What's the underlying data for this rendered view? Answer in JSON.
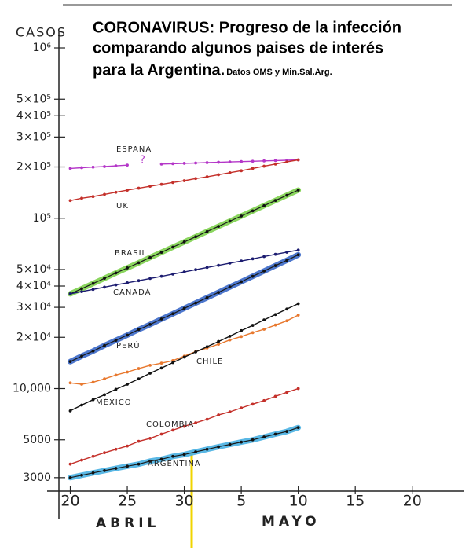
{
  "chart_data": {
    "type": "line",
    "title_lines": [
      "CORONAVIRUS: Progreso de la infección",
      "comparando algunos paises de interés",
      "para la Argentina."
    ],
    "subtitle": "Datos OMS y Min.Sal.Arg.",
    "y_label": "CASOS",
    "x_group_labels": [
      "ABRIL",
      "MAYO"
    ],
    "annotations": [
      "?"
    ],
    "log_y": true,
    "x": [
      0,
      1,
      2,
      3,
      4,
      5,
      6,
      7,
      8,
      9,
      10,
      11,
      12,
      13,
      14,
      15,
      16,
      17,
      18,
      19,
      20
    ],
    "xlim": [
      -1,
      34.5
    ],
    "xticks": [
      {
        "value": 0,
        "label": "20"
      },
      {
        "value": 5,
        "label": "25"
      },
      {
        "value": 10,
        "label": "30"
      },
      {
        "value": 15,
        "label": "5"
      },
      {
        "value": 20,
        "label": "10"
      },
      {
        "value": 25,
        "label": "15"
      },
      {
        "value": 30,
        "label": "20"
      }
    ],
    "ylim": [
      2500,
      1250000
    ],
    "yticks": [
      {
        "value": 1000000,
        "label": "10⁶"
      },
      {
        "value": 500000,
        "label": "5×10⁵"
      },
      {
        "value": 400000,
        "label": "4×10⁵"
      },
      {
        "value": 300000,
        "label": "3×10⁵"
      },
      {
        "value": 200000,
        "label": "2×10⁵"
      },
      {
        "value": 100000,
        "label": "10⁵"
      },
      {
        "value": 50000,
        "label": "5×10⁴"
      },
      {
        "value": 40000,
        "label": "4×10⁴"
      },
      {
        "value": 30000,
        "label": "3×10⁴"
      },
      {
        "value": 20000,
        "label": "2×10⁴"
      },
      {
        "value": 10000,
        "label": "10,000"
      },
      5000,
      3000
    ],
    "series": [
      {
        "name": "ESPAÑA",
        "color": "#b436c8",
        "values": [
          196000,
          198000,
          199500,
          201000,
          203000,
          205000,
          null,
          null,
          208000,
          209000,
          210000,
          211000,
          212000,
          213000,
          214000,
          215000,
          216000,
          217000,
          218000,
          219000,
          220000
        ]
      },
      {
        "name": "UK",
        "color": "#c4302a",
        "values": [
          127000,
          131000,
          134000,
          138000,
          142000,
          146000,
          150000,
          154000,
          158000,
          162000,
          166000,
          171000,
          175000,
          180000,
          185000,
          190000,
          196000,
          202000,
          208000,
          214000,
          220000
        ]
      },
      {
        "name": "BRASIL",
        "color": "#7ed24e",
        "highlight": true,
        "values": [
          36000,
          38600,
          41400,
          44400,
          47700,
          51100,
          54800,
          58800,
          63100,
          67700,
          72600,
          77900,
          83500,
          89600,
          96100,
          103000,
          110500,
          118500,
          127100,
          136300,
          146200
        ]
      },
      {
        "name": "CANADÁ",
        "color": "#1c1c70",
        "values": [
          36000,
          37100,
          38200,
          39400,
          40600,
          41800,
          43000,
          44300,
          45600,
          47000,
          48400,
          49900,
          51400,
          52900,
          54500,
          56100,
          57800,
          59600,
          61400,
          63200,
          65000
        ]
      },
      {
        "name": "PERÚ",
        "color": "#3a68c8",
        "highlight": true,
        "values": [
          14400,
          15500,
          16600,
          17900,
          19200,
          20600,
          22200,
          23800,
          25600,
          27500,
          29600,
          31800,
          34200,
          36700,
          39500,
          42400,
          45600,
          49000,
          52700,
          56600,
          61000
        ]
      },
      {
        "name": "CHILE",
        "color": "#e8782e",
        "values": [
          10800,
          10600,
          10900,
          11400,
          12000,
          12500,
          13100,
          13700,
          14100,
          14600,
          15500,
          16500,
          17300,
          18200,
          19300,
          20200,
          21300,
          22300,
          23600,
          25000,
          27000
        ]
      },
      {
        "name": "MÉXICO",
        "color": "#111111",
        "values": [
          7400,
          8000,
          8600,
          9200,
          9900,
          10600,
          11400,
          12300,
          13200,
          14200,
          15300,
          16400,
          17600,
          18900,
          20300,
          21900,
          23500,
          25300,
          27200,
          29300,
          31500
        ]
      },
      {
        "name": "COLOMBIA",
        "color": "#c4302a",
        "values": [
          3600,
          3800,
          4000,
          4200,
          4400,
          4600,
          4900,
          5100,
          5400,
          5700,
          6000,
          6300,
          6600,
          7000,
          7300,
          7700,
          8100,
          8500,
          9000,
          9500,
          10000
        ]
      },
      {
        "name": "ARGENTINA",
        "color": "#48b0e2",
        "highlight": true,
        "values": [
          3000,
          3100,
          3200,
          3300,
          3400,
          3500,
          3600,
          3750,
          3850,
          4000,
          4100,
          4250,
          4400,
          4550,
          4700,
          4850,
          5000,
          5200,
          5400,
          5600,
          5900
        ]
      }
    ]
  }
}
